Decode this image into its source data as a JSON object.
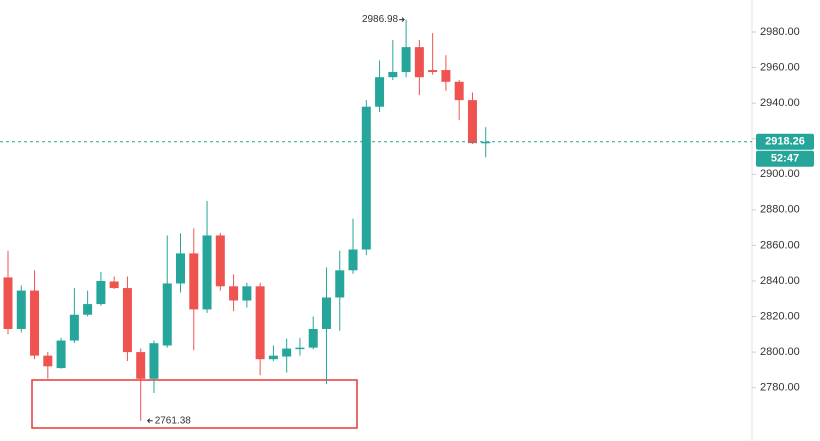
{
  "chart_data": {
    "type": "candlestick",
    "up_color": "#26a69a",
    "down_color": "#ef5350",
    "open": [
      2842,
      2813,
      2834.6,
      2798,
      2791,
      2806.5,
      2821,
      2827,
      2839.7,
      2836,
      2800,
      2785,
      2803.7,
      2838.6,
      2855.5,
      2824,
      2865.6,
      2837,
      2829,
      2837,
      2796,
      2797.5,
      2802,
      2802.5,
      2813,
      2830.7,
      2846,
      2857.7,
      2938,
      2954.6,
      2957.5,
      2971.5,
      2958.6,
      2958.6,
      2952,
      2941.7,
      2918
    ],
    "high": [
      2857,
      2837.5,
      2846,
      2800,
      2808,
      2836,
      2834.6,
      2845,
      2842.5,
      2842.5,
      2802,
      2806.5,
      2865.6,
      2866.8,
      2869.6,
      2885,
      2867,
      2843.7,
      2839,
      2839,
      2803.7,
      2807.6,
      2808,
      2820,
      2847.6,
      2857,
      2875,
      2941.7,
      2964,
      2975.5,
      2986.98,
      2975.5,
      2979.4,
      2967,
      2953,
      2946,
      2926.5
    ],
    "low": [
      2810,
      2811,
      2796,
      2785,
      2790.7,
      2805,
      2820,
      2826,
      2835.5,
      2795,
      2761.38,
      2777,
      2802.5,
      2833.5,
      2801,
      2822,
      2834.6,
      2823,
      2825,
      2787,
      2795,
      2788.5,
      2798,
      2801.5,
      2782,
      2812,
      2844,
      2854.5,
      2935,
      2953,
      2954.5,
      2944.5,
      2956,
      2947,
      2930.4,
      2917,
      2909.6
    ],
    "close": [
      2813,
      2834.6,
      2798,
      2792,
      2806.5,
      2821,
      2827,
      2840,
      2836,
      2800,
      2785,
      2805,
      2838.6,
      2855.5,
      2824,
      2865.6,
      2837,
      2829,
      2837,
      2796,
      2798,
      2802,
      2802.5,
      2813,
      2830.7,
      2846,
      2857.7,
      2938,
      2954.6,
      2957.5,
      2971.5,
      2954.6,
      2957.5,
      2952,
      2941.7,
      2917.5,
      2918.26
    ],
    "ylim": [
      2750,
      2998
    ],
    "yticks": [
      {
        "value": 2780,
        "label": "2780.00"
      },
      {
        "value": 2800,
        "label": "2800.00"
      },
      {
        "value": 2820,
        "label": "2820.00"
      },
      {
        "value": 2840,
        "label": "2840.00"
      },
      {
        "value": 2860,
        "label": "2860.00"
      },
      {
        "value": 2880,
        "label": "2880.00"
      },
      {
        "value": 2900,
        "label": "2900.00"
      },
      {
        "value": 2920,
        "label": "2920.00"
      },
      {
        "value": 2940,
        "label": "2940.00"
      },
      {
        "value": 2960,
        "label": "2960.00"
      },
      {
        "value": 2980,
        "label": "2980.00"
      }
    ],
    "last_price": {
      "value": 2918.26,
      "label": "2918.26"
    },
    "countdown": "52:47",
    "high_annotation": {
      "value": 2986.98,
      "label": "2986.98"
    },
    "low_annotation": {
      "value": 2761.38,
      "label": "2761.38"
    }
  }
}
